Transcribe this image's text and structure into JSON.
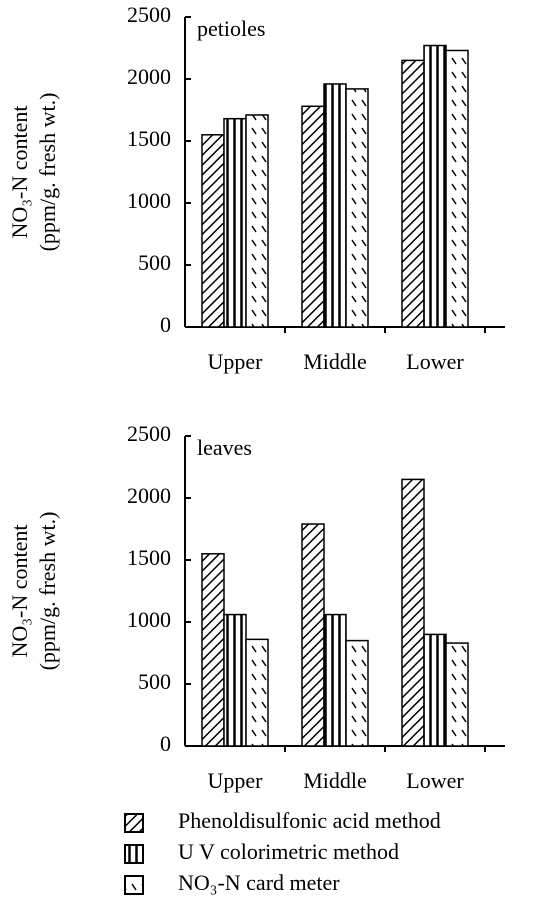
{
  "chart_data": [
    {
      "type": "bar",
      "annotation": "petioles",
      "ylabel": [
        "NO₃-N content",
        "(ppm/g. fresh wt.)"
      ],
      "categories": [
        "Upper",
        "Middle",
        "Lower"
      ],
      "series": [
        {
          "name": "Phenoldisulfonic acid method",
          "pattern": "diagonal",
          "values": [
            1550,
            1780,
            2150
          ]
        },
        {
          "name": "U V colorimetric method",
          "pattern": "vertical",
          "values": [
            1680,
            1960,
            2270
          ]
        },
        {
          "name": "NO₃-N card meter",
          "pattern": "dashed",
          "values": [
            1710,
            1920,
            2230
          ]
        }
      ],
      "ylim": [
        0,
        2500
      ],
      "yticks": [
        0,
        500,
        1000,
        1500,
        2000,
        2500
      ]
    },
    {
      "type": "bar",
      "annotation": "leaves",
      "ylabel": [
        "NO₃-N content",
        "(ppm/g. fresh wt.)"
      ],
      "categories": [
        "Upper",
        "Middle",
        "Lower"
      ],
      "series": [
        {
          "pattern": "diagonal",
          "values": [
            1550,
            1790,
            2150
          ]
        },
        {
          "pattern": "vertical",
          "values": [
            1060,
            1060,
            900
          ]
        },
        {
          "pattern": "dashed",
          "values": [
            860,
            850,
            830
          ]
        }
      ],
      "ylim": [
        0,
        2500
      ],
      "yticks": [
        0,
        500,
        1000,
        1500,
        2000,
        2500
      ]
    }
  ]
}
